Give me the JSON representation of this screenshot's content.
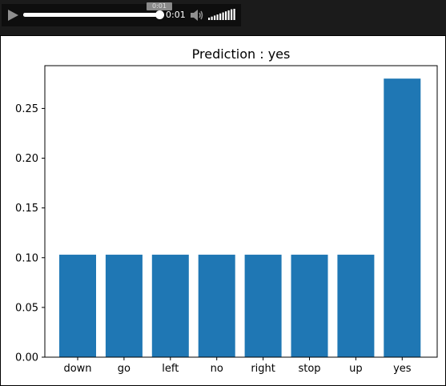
{
  "player": {
    "tooltip_time": "0:01",
    "current_time": "0:01",
    "progress_fraction": 1.0,
    "volume_fraction": 1.0,
    "colors": {
      "background": "#0e0e0e",
      "foreground": "#ffffff"
    },
    "icons": {
      "play": "play-icon",
      "volume": "volume-icon"
    }
  },
  "chart_data": {
    "type": "bar",
    "title": "Prediction : yes",
    "categories": [
      "down",
      "go",
      "left",
      "no",
      "right",
      "stop",
      "up",
      "yes"
    ],
    "values": [
      0.103,
      0.103,
      0.103,
      0.103,
      0.103,
      0.103,
      0.103,
      0.28
    ],
    "xlabel": "",
    "ylabel": "",
    "ylim": [
      0,
      0.293
    ],
    "yticks": [
      0.0,
      0.05,
      0.1,
      0.15,
      0.2,
      0.25
    ],
    "ytick_labels": [
      "0.00",
      "0.05",
      "0.10",
      "0.15",
      "0.20",
      "0.25"
    ],
    "bar_color": "#1f77b4",
    "grid": false,
    "legend": "none"
  }
}
